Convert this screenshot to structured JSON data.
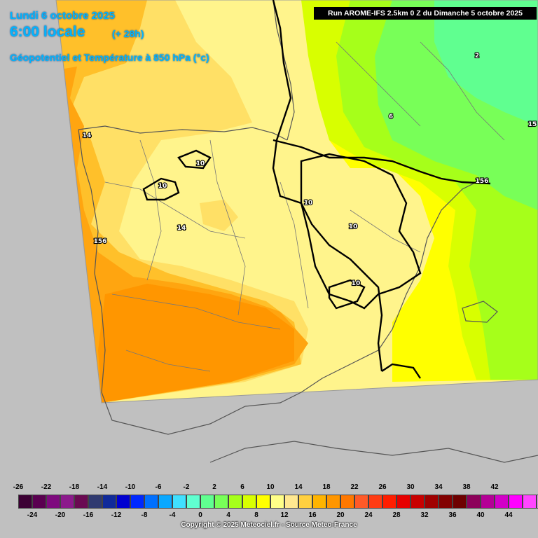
{
  "header": {
    "date": "Lundi 6 octobre 2025",
    "time": "6:00 locale",
    "lead": "(+ 28h)",
    "parameter": "Géopotentiel et Température à 850 hPa (°c)",
    "run": "Run AROME-IFS 2.5km 0 Z du Dimanche 5 octobre 2025"
  },
  "contour_labels": [
    {
      "text": "14"
    },
    {
      "text": "10"
    },
    {
      "text": "10"
    },
    {
      "text": "14"
    },
    {
      "text": "156"
    },
    {
      "text": "10"
    },
    {
      "text": "10"
    },
    {
      "text": "10"
    },
    {
      "text": "6"
    },
    {
      "text": "2"
    },
    {
      "text": "156"
    },
    {
      "text": "15"
    }
  ],
  "legend": {
    "top_labels": [
      "-26",
      "-22",
      "-18",
      "-14",
      "-10",
      "-6",
      "-2",
      "2",
      "6",
      "10",
      "14",
      "18",
      "22",
      "26",
      "30",
      "34",
      "38",
      "42"
    ],
    "bottom_labels": [
      "-24",
      "-20",
      "-16",
      "-12",
      "-8",
      "-4",
      "0",
      "4",
      "8",
      "12",
      "16",
      "20",
      "24",
      "28",
      "32",
      "36",
      "40",
      "44"
    ],
    "colors": [
      "#3c0034",
      "#5a0050",
      "#7e0a7e",
      "#8c1a8c",
      "#6a0a52",
      "#303a70",
      "#102a9a",
      "#0000d0",
      "#0028ff",
      "#0070ff",
      "#0aa8ff",
      "#40e0ff",
      "#60ffd0",
      "#60ff90",
      "#78ff58",
      "#a6ff1a",
      "#d8ff00",
      "#ffff00",
      "#ffff88",
      "#ffe890",
      "#ffd040",
      "#ffb400",
      "#ff9600",
      "#ff7800",
      "#ff5a28",
      "#ff3c14",
      "#ff1e00",
      "#e60000",
      "#c80000",
      "#a00000",
      "#820000",
      "#6e0000",
      "#8c005a",
      "#b40096",
      "#d200c8",
      "#ff00ff",
      "#ff46ff",
      "#ff8cff"
    ]
  },
  "copyright": "Copyright © 2025 Meteociel.fr - Source Meteo-France"
}
